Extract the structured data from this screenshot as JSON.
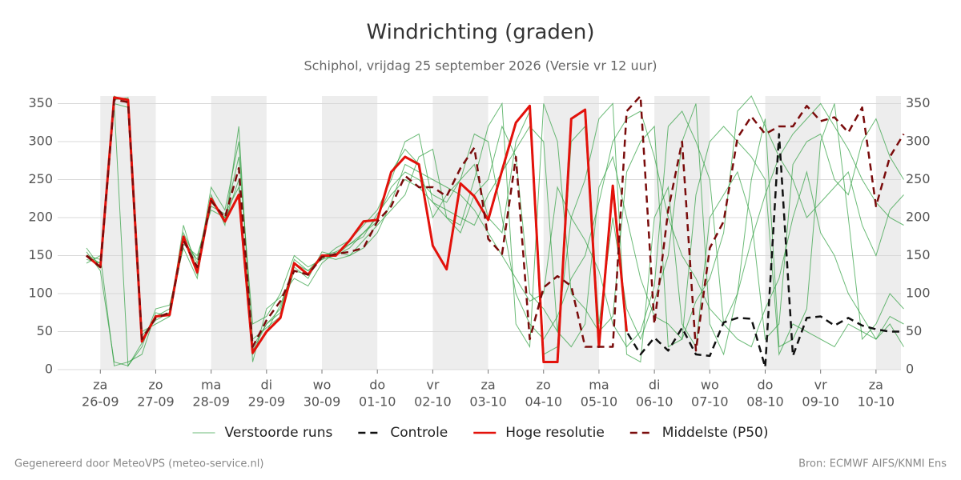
{
  "chart_data": {
    "type": "line",
    "title": "Windrichting (graden)",
    "subtitle": "Schiphol, vrijdag 25 september 2026 (Versie vr 12 uur)",
    "x": [
      -0.25,
      0,
      0.25,
      0.5,
      0.75,
      1,
      1.25,
      1.5,
      1.75,
      2,
      2.25,
      2.5,
      2.75,
      3,
      3.25,
      3.5,
      3.75,
      4,
      4.25,
      4.5,
      4.75,
      5,
      5.25,
      5.5,
      5.75,
      6,
      6.25,
      6.5,
      6.75,
      7,
      7.25,
      7.5,
      7.75,
      8,
      8.25,
      8.5,
      8.75,
      9,
      9.25,
      9.5,
      9.75,
      10,
      10.25,
      10.5,
      10.75,
      11,
      11.25,
      11.5,
      11.75,
      12,
      12.25,
      12.5,
      12.75,
      13,
      13.25,
      13.5,
      13.75,
      14,
      14.25,
      14.5
    ],
    "xlim": [
      -0.77,
      14.45
    ],
    "xticks": [
      {
        "value": 0,
        "label": "za"
      },
      {
        "value": 1,
        "label": "zo"
      },
      {
        "value": 2,
        "label": "ma"
      },
      {
        "value": 3,
        "label": "di"
      },
      {
        "value": 4,
        "label": "wo"
      },
      {
        "value": 5,
        "label": "do"
      },
      {
        "value": 6,
        "label": "vr"
      },
      {
        "value": 7,
        "label": "za"
      },
      {
        "value": 8,
        "label": "zo"
      },
      {
        "value": 9,
        "label": "ma"
      },
      {
        "value": 10,
        "label": "di"
      },
      {
        "value": 11,
        "label": "wo"
      },
      {
        "value": 12,
        "label": "do"
      },
      {
        "value": 13,
        "label": "vr"
      },
      {
        "value": 14,
        "label": "za"
      }
    ],
    "xtick_dates": [
      "26-09",
      "27-09",
      "28-09",
      "29-09",
      "30-09",
      "01-10",
      "02-10",
      "03-10",
      "04-10",
      "05-10",
      "06-10",
      "07-10",
      "08-10",
      "09-10",
      "10-10"
    ],
    "ylim": [
      0,
      360
    ],
    "yticks": [
      0,
      50,
      100,
      150,
      200,
      250,
      300,
      350
    ],
    "grid": true,
    "ensemble": {
      "name": "Verstoorde runs",
      "color": "#2e9e3e",
      "members": [
        [
          145,
          140,
          350,
          345,
          40,
          70,
          80,
          180,
          140,
          215,
          205,
          240,
          30,
          60,
          80,
          140,
          130,
          145,
          150,
          160,
          180,
          200,
          240,
          260,
          250,
          230,
          220,
          250,
          270,
          200,
          180,
          300,
          340,
          20,
          30,
          300,
          320,
          60,
          200,
          80,
          40,
          90,
          150,
          300,
          350,
          60,
          20,
          100,
          250,
          330,
          30,
          40,
          80,
          300,
          350,
          200,
          40,
          60,
          100,
          80
        ],
        [
          155,
          130,
          10,
          5,
          30,
          80,
          85,
          160,
          120,
          230,
          190,
          320,
          10,
          80,
          95,
          120,
          110,
          140,
          155,
          150,
          170,
          190,
          210,
          230,
          280,
          290,
          200,
          180,
          230,
          250,
          320,
          280,
          100,
          80,
          50,
          200,
          250,
          330,
          350,
          20,
          10,
          200,
          240,
          60,
          30,
          200,
          230,
          260,
          200,
          40,
          60,
          270,
          300,
          310,
          250,
          230,
          300,
          330,
          280,
          250
        ],
        [
          150,
          145,
          360,
          350,
          50,
          60,
          70,
          190,
          130,
          240,
          210,
          300,
          40,
          55,
          70,
          130,
          125,
          150,
          145,
          150,
          160,
          180,
          220,
          270,
          260,
          250,
          240,
          230,
          210,
          180,
          150,
          120,
          90,
          100,
          240,
          200,
          170,
          130,
          60,
          30,
          50,
          110,
          320,
          340,
          300,
          250,
          60,
          40,
          30,
          80,
          120,
          200,
          260,
          180,
          150,
          100,
          70,
          40,
          60,
          30
        ],
        [
          140,
          150,
          5,
          10,
          20,
          75,
          70,
          165,
          150,
          210,
          200,
          280,
          60,
          70,
          100,
          150,
          135,
          145,
          160,
          170,
          190,
          210,
          250,
          300,
          310,
          220,
          200,
          190,
          250,
          320,
          350,
          60,
          30,
          350,
          300,
          100,
          80,
          50,
          70,
          260,
          300,
          320,
          30,
          40,
          90,
          120,
          180,
          340,
          360,
          320,
          280,
          250,
          200,
          220,
          240,
          260,
          190,
          150,
          210,
          230
        ],
        [
          160,
          135,
          355,
          358,
          45,
          65,
          75,
          170,
          145,
          225,
          195,
          250,
          20,
          50,
          85,
          135,
          120,
          155,
          150,
          165,
          175,
          205,
          230,
          250,
          240,
          220,
          210,
          200,
          190,
          230,
          260,
          290,
          320,
          300,
          50,
          30,
          60,
          240,
          280,
          200,
          120,
          70,
          60,
          40,
          230,
          300,
          320,
          300,
          280,
          250,
          20,
          60,
          50,
          40,
          30,
          60,
          50,
          40,
          70,
          60
        ],
        [
          150,
          140,
          350,
          5,
          35,
          70,
          75,
          175,
          125,
          220,
          200,
          230,
          25,
          60,
          75,
          145,
          130,
          150,
          155,
          165,
          180,
          195,
          260,
          290,
          270,
          200,
          230,
          250,
          310,
          300,
          200,
          100,
          60,
          40,
          70,
          120,
          150,
          220,
          300,
          330,
          340,
          280,
          200,
          150,
          120,
          80,
          60,
          100,
          170,
          230,
          280,
          310,
          330,
          350,
          320,
          290,
          250,
          220,
          200,
          190
        ]
      ]
    },
    "series": [
      {
        "name": "Controle",
        "color": "#111111",
        "style": "dashed",
        "values": [
          150,
          135,
          358,
          355,
          37,
          70,
          72,
          175,
          128,
          225,
          195,
          230,
          22,
          50,
          68,
          140,
          125,
          150,
          150,
          170,
          195,
          197,
          260,
          280,
          270,
          163,
          132,
          245,
          228,
          197,
          262,
          325,
          347,
          10,
          10,
          330,
          342,
          30,
          242,
          50,
          20,
          42,
          25,
          55,
          20,
          18,
          62,
          68,
          67,
          3,
          310,
          18,
          68,
          70,
          58,
          68,
          58,
          53,
          50,
          50
        ]
      },
      {
        "name": "Hoge resolutie",
        "color": "#e3120b",
        "style": "solid",
        "values": [
          150,
          135,
          358,
          355,
          37,
          70,
          72,
          175,
          128,
          225,
          195,
          230,
          22,
          50,
          68,
          140,
          125,
          150,
          150,
          170,
          195,
          197,
          260,
          280,
          270,
          163,
          132,
          245,
          228,
          197,
          262,
          325,
          347,
          10,
          10,
          330,
          342,
          30,
          242,
          50,
          null,
          null,
          null,
          null,
          null,
          null,
          null,
          null,
          null,
          null,
          null,
          null,
          null,
          null,
          null,
          null,
          null,
          null,
          null,
          null
        ]
      },
      {
        "name": "Middelste (P50)",
        "color": "#7a0c0c",
        "style": "dashed",
        "values": [
          150,
          135,
          355,
          352,
          40,
          68,
          75,
          170,
          135,
          222,
          200,
          265,
          30,
          65,
          90,
          130,
          125,
          148,
          152,
          155,
          160,
          195,
          215,
          255,
          240,
          240,
          228,
          265,
          292,
          172,
          152,
          280,
          40,
          108,
          123,
          110,
          30,
          30,
          30,
          340,
          360,
          60,
          210,
          300,
          25,
          160,
          195,
          305,
          333,
          310,
          320,
          320,
          347,
          327,
          332,
          312,
          345,
          215,
          280,
          310
        ]
      }
    ],
    "footer_left": "Gegenereerd door MeteoVPS (meteo-service.nl)",
    "footer_right": "Bron: ECMWF AIFS/KNMI Ens"
  }
}
